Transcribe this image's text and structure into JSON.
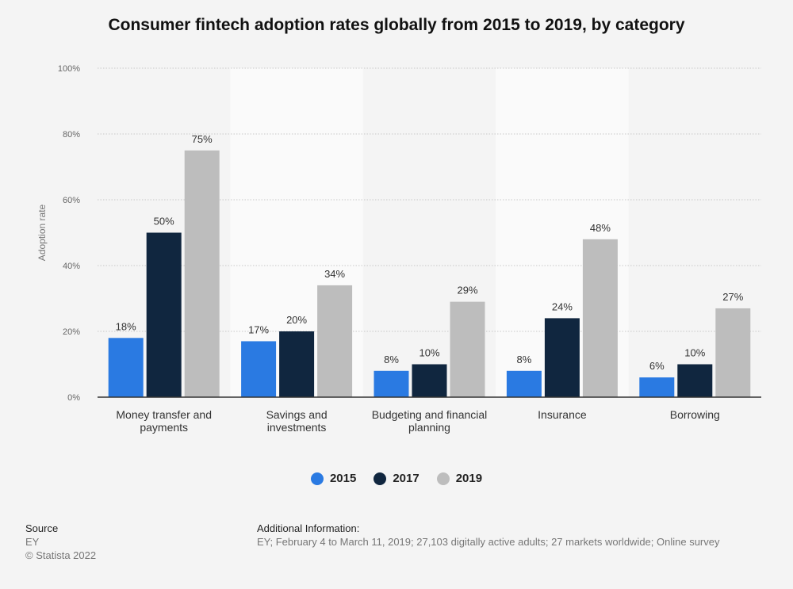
{
  "title": "Consumer fintech adoption rates globally from 2015 to 2019, by category",
  "chart_data": {
    "type": "bar",
    "title": "Consumer fintech adoption rates globally from 2015 to 2019, by category",
    "ylabel": "Adoption rate",
    "xlabel": "",
    "ylim": [
      0,
      100
    ],
    "yticks": [
      "0%",
      "20%",
      "40%",
      "60%",
      "80%",
      "100%"
    ],
    "grid": true,
    "legend_position": "bottom",
    "categories": [
      [
        "Money transfer and",
        "payments"
      ],
      [
        "Savings and",
        "investments"
      ],
      [
        "Budgeting and financial",
        "planning"
      ],
      [
        "Insurance"
      ],
      [
        "Borrowing"
      ]
    ],
    "series": [
      {
        "name": "2015",
        "color": "#2a7ae2",
        "values": [
          18,
          17,
          8,
          8,
          6
        ]
      },
      {
        "name": "2017",
        "color": "#10263f",
        "values": [
          50,
          20,
          10,
          24,
          10
        ]
      },
      {
        "name": "2019",
        "color": "#bdbdbd",
        "values": [
          75,
          34,
          29,
          48,
          27
        ]
      }
    ]
  },
  "footer": {
    "source_heading": "Source",
    "source_value": "EY",
    "copyright": "© Statista 2022",
    "info_heading": "Additional Information:",
    "info_value": "EY; February 4 to March 11, 2019; 27,103 digitally active adults; 27 markets worldwide; Online survey"
  }
}
